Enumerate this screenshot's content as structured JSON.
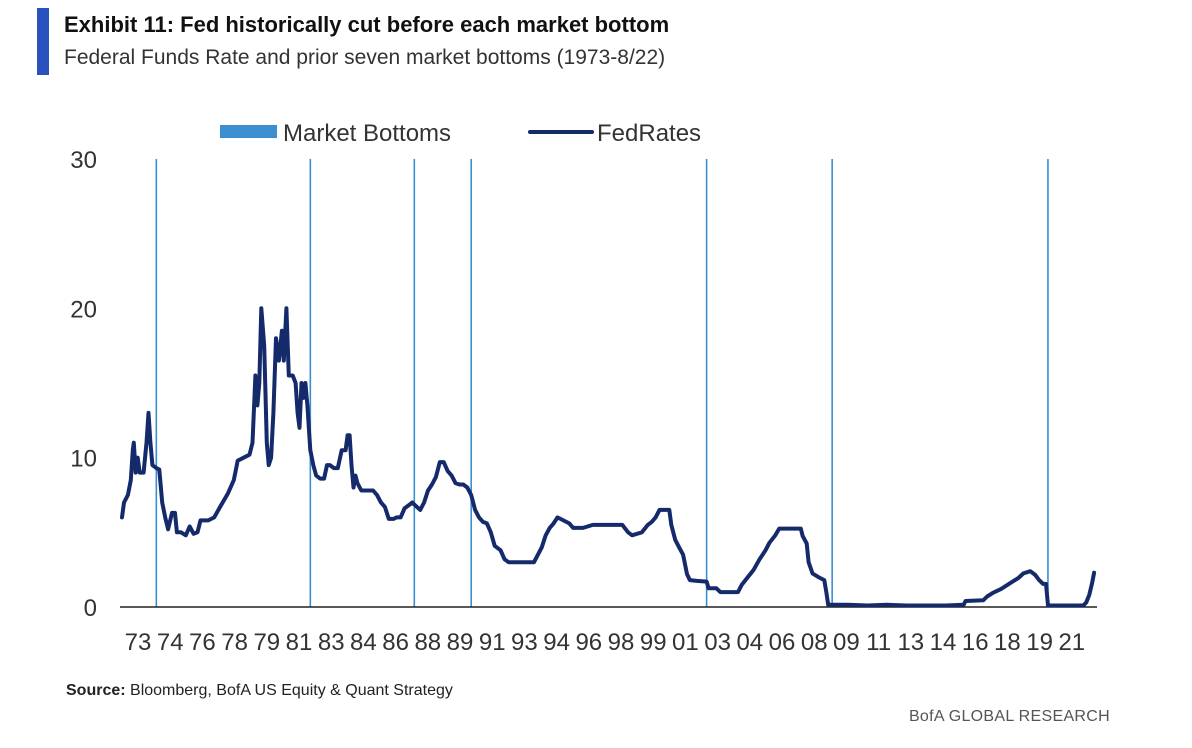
{
  "header": {
    "title": "Exhibit 11: Fed historically cut before each market bottom",
    "subtitle": "Federal Funds Rate and prior seven market bottoms (1973-8/22)"
  },
  "footer": {
    "source_label": "Source:",
    "source_text": "Bloomberg, BofA US Equity & Quant Strategy",
    "brand": "BofA GLOBAL RESEARCH"
  },
  "chart_data": {
    "type": "line",
    "xlabel": "",
    "ylabel": "",
    "xlim": [
      1973.0,
      2022.7
    ],
    "ylim": [
      0,
      30
    ],
    "y_ticks": [
      0,
      10,
      20,
      30
    ],
    "x_tick_labels": [
      "73",
      "74",
      "76",
      "78",
      "79",
      "81",
      "83",
      "84",
      "86",
      "88",
      "89",
      "91",
      "93",
      "94",
      "96",
      "98",
      "99",
      "01",
      "03",
      "04",
      "06",
      "08",
      "09",
      "11",
      "13",
      "14",
      "16",
      "18",
      "19",
      "21"
    ],
    "legend": {
      "placement": "top",
      "items": [
        {
          "label": "Market Bottoms",
          "kind": "bar",
          "color": "#3b8fd0"
        },
        {
          "label": "FedRates",
          "kind": "line",
          "color": "#142a6b"
        }
      ]
    },
    "market_bottoms": [
      1974.75,
      1982.6,
      1987.9,
      1990.8,
      2002.8,
      2009.2,
      2020.2
    ],
    "series": [
      {
        "name": "FedRates",
        "color": "#142a6b",
        "points": [
          [
            1973.0,
            6.0
          ],
          [
            1973.1,
            7.0
          ],
          [
            1973.3,
            7.5
          ],
          [
            1973.45,
            8.5
          ],
          [
            1973.55,
            10.5
          ],
          [
            1973.6,
            11.0
          ],
          [
            1973.7,
            9.0
          ],
          [
            1973.8,
            10.0
          ],
          [
            1973.9,
            9.0
          ],
          [
            1974.1,
            9.0
          ],
          [
            1974.25,
            11.0
          ],
          [
            1974.35,
            13.0
          ],
          [
            1974.45,
            11.0
          ],
          [
            1974.55,
            9.5
          ],
          [
            1974.75,
            9.3
          ],
          [
            1974.9,
            9.2
          ],
          [
            1975.05,
            7.0
          ],
          [
            1975.2,
            6.0
          ],
          [
            1975.35,
            5.2
          ],
          [
            1975.55,
            6.3
          ],
          [
            1975.7,
            6.3
          ],
          [
            1975.8,
            5.0
          ],
          [
            1976.0,
            5.0
          ],
          [
            1976.25,
            4.8
          ],
          [
            1976.45,
            5.4
          ],
          [
            1976.65,
            4.9
          ],
          [
            1976.85,
            5.0
          ],
          [
            1977.0,
            5.8
          ],
          [
            1977.4,
            5.8
          ],
          [
            1977.7,
            6.0
          ],
          [
            1978.0,
            6.7
          ],
          [
            1978.4,
            7.6
          ],
          [
            1978.7,
            8.5
          ],
          [
            1978.9,
            9.8
          ],
          [
            1979.2,
            10.0
          ],
          [
            1979.5,
            10.2
          ],
          [
            1979.65,
            11.0
          ],
          [
            1979.8,
            15.5
          ],
          [
            1979.9,
            13.5
          ],
          [
            1980.0,
            15.0
          ],
          [
            1980.1,
            20.0
          ],
          [
            1980.25,
            17.5
          ],
          [
            1980.38,
            11.0
          ],
          [
            1980.48,
            9.5
          ],
          [
            1980.6,
            10.0
          ],
          [
            1980.72,
            13.0
          ],
          [
            1980.85,
            18.0
          ],
          [
            1981.0,
            16.5
          ],
          [
            1981.15,
            18.5
          ],
          [
            1981.25,
            16.5
          ],
          [
            1981.38,
            20.0
          ],
          [
            1981.5,
            15.5
          ],
          [
            1981.7,
            15.5
          ],
          [
            1981.85,
            15.0
          ],
          [
            1981.95,
            13.0
          ],
          [
            1982.05,
            12.0
          ],
          [
            1982.15,
            15.0
          ],
          [
            1982.25,
            14.0
          ],
          [
            1982.35,
            15.0
          ],
          [
            1982.45,
            13.5
          ],
          [
            1982.6,
            10.5
          ],
          [
            1982.75,
            9.5
          ],
          [
            1982.9,
            8.8
          ],
          [
            1983.1,
            8.6
          ],
          [
            1983.3,
            8.6
          ],
          [
            1983.45,
            9.5
          ],
          [
            1983.6,
            9.5
          ],
          [
            1983.8,
            9.3
          ],
          [
            1984.0,
            9.3
          ],
          [
            1984.2,
            10.5
          ],
          [
            1984.4,
            10.5
          ],
          [
            1984.5,
            11.5
          ],
          [
            1984.6,
            11.5
          ],
          [
            1984.7,
            9.5
          ],
          [
            1984.8,
            8.0
          ],
          [
            1984.9,
            8.8
          ],
          [
            1985.0,
            8.3
          ],
          [
            1985.2,
            7.8
          ],
          [
            1985.4,
            7.8
          ],
          [
            1985.6,
            7.8
          ],
          [
            1985.8,
            7.8
          ],
          [
            1986.0,
            7.5
          ],
          [
            1986.2,
            7.0
          ],
          [
            1986.4,
            6.7
          ],
          [
            1986.6,
            5.9
          ],
          [
            1986.85,
            5.9
          ],
          [
            1987.0,
            6.0
          ],
          [
            1987.2,
            6.0
          ],
          [
            1987.4,
            6.6
          ],
          [
            1987.6,
            6.8
          ],
          [
            1987.8,
            7.0
          ],
          [
            1987.95,
            6.8
          ],
          [
            1988.2,
            6.5
          ],
          [
            1988.4,
            7.0
          ],
          [
            1988.6,
            7.8
          ],
          [
            1988.8,
            8.2
          ],
          [
            1989.0,
            8.7
          ],
          [
            1989.2,
            9.7
          ],
          [
            1989.4,
            9.7
          ],
          [
            1989.6,
            9.1
          ],
          [
            1989.8,
            8.8
          ],
          [
            1990.0,
            8.3
          ],
          [
            1990.2,
            8.2
          ],
          [
            1990.4,
            8.2
          ],
          [
            1990.6,
            8.0
          ],
          [
            1990.8,
            7.5
          ],
          [
            1991.0,
            6.5
          ],
          [
            1991.2,
            6.0
          ],
          [
            1991.4,
            5.7
          ],
          [
            1991.6,
            5.6
          ],
          [
            1991.8,
            5.0
          ],
          [
            1992.0,
            4.1
          ],
          [
            1992.3,
            3.8
          ],
          [
            1992.5,
            3.2
          ],
          [
            1992.7,
            3.0
          ],
          [
            1993.0,
            3.0
          ],
          [
            1993.5,
            3.0
          ],
          [
            1994.0,
            3.0
          ],
          [
            1994.2,
            3.5
          ],
          [
            1994.4,
            4.0
          ],
          [
            1994.6,
            4.8
          ],
          [
            1994.8,
            5.3
          ],
          [
            1995.0,
            5.6
          ],
          [
            1995.2,
            6.0
          ],
          [
            1995.5,
            5.8
          ],
          [
            1995.8,
            5.6
          ],
          [
            1996.0,
            5.3
          ],
          [
            1996.5,
            5.3
          ],
          [
            1997.0,
            5.5
          ],
          [
            1997.5,
            5.5
          ],
          [
            1998.0,
            5.5
          ],
          [
            1998.5,
            5.5
          ],
          [
            1998.8,
            5.0
          ],
          [
            1999.0,
            4.8
          ],
          [
            1999.5,
            5.0
          ],
          [
            1999.8,
            5.5
          ],
          [
            2000.0,
            5.7
          ],
          [
            2000.2,
            6.0
          ],
          [
            2000.4,
            6.5
          ],
          [
            2000.6,
            6.5
          ],
          [
            2000.9,
            6.5
          ],
          [
            2001.0,
            5.5
          ],
          [
            2001.2,
            4.5
          ],
          [
            2001.4,
            4.0
          ],
          [
            2001.6,
            3.5
          ],
          [
            2001.8,
            2.2
          ],
          [
            2001.95,
            1.8
          ],
          [
            2002.3,
            1.75
          ],
          [
            2002.8,
            1.7
          ],
          [
            2002.9,
            1.25
          ],
          [
            2003.3,
            1.25
          ],
          [
            2003.5,
            1.0
          ],
          [
            2004.0,
            1.0
          ],
          [
            2004.4,
            1.0
          ],
          [
            2004.6,
            1.5
          ],
          [
            2004.9,
            2.0
          ],
          [
            2005.2,
            2.5
          ],
          [
            2005.5,
            3.2
          ],
          [
            2005.8,
            3.8
          ],
          [
            2006.0,
            4.3
          ],
          [
            2006.3,
            4.8
          ],
          [
            2006.5,
            5.25
          ],
          [
            2006.8,
            5.25
          ],
          [
            2007.2,
            5.25
          ],
          [
            2007.6,
            5.25
          ],
          [
            2007.7,
            4.75
          ],
          [
            2007.9,
            4.25
          ],
          [
            2008.0,
            3.0
          ],
          [
            2008.2,
            2.25
          ],
          [
            2008.5,
            2.0
          ],
          [
            2008.8,
            1.8
          ],
          [
            2008.9,
            1.0
          ],
          [
            2009.0,
            0.15
          ],
          [
            2010.0,
            0.15
          ],
          [
            2011.0,
            0.1
          ],
          [
            2012.0,
            0.15
          ],
          [
            2013.0,
            0.1
          ],
          [
            2014.0,
            0.1
          ],
          [
            2015.0,
            0.1
          ],
          [
            2015.9,
            0.15
          ],
          [
            2016.0,
            0.4
          ],
          [
            2016.9,
            0.45
          ],
          [
            2017.1,
            0.7
          ],
          [
            2017.4,
            0.95
          ],
          [
            2017.8,
            1.2
          ],
          [
            2018.1,
            1.45
          ],
          [
            2018.4,
            1.7
          ],
          [
            2018.7,
            1.95
          ],
          [
            2018.95,
            2.25
          ],
          [
            2019.3,
            2.4
          ],
          [
            2019.55,
            2.15
          ],
          [
            2019.75,
            1.8
          ],
          [
            2019.95,
            1.55
          ],
          [
            2020.1,
            1.55
          ],
          [
            2020.2,
            0.1
          ],
          [
            2021.0,
            0.1
          ],
          [
            2021.6,
            0.1
          ],
          [
            2022.0,
            0.1
          ],
          [
            2022.15,
            0.3
          ],
          [
            2022.3,
            0.8
          ],
          [
            2022.45,
            1.6
          ],
          [
            2022.55,
            2.3
          ]
        ]
      }
    ]
  }
}
